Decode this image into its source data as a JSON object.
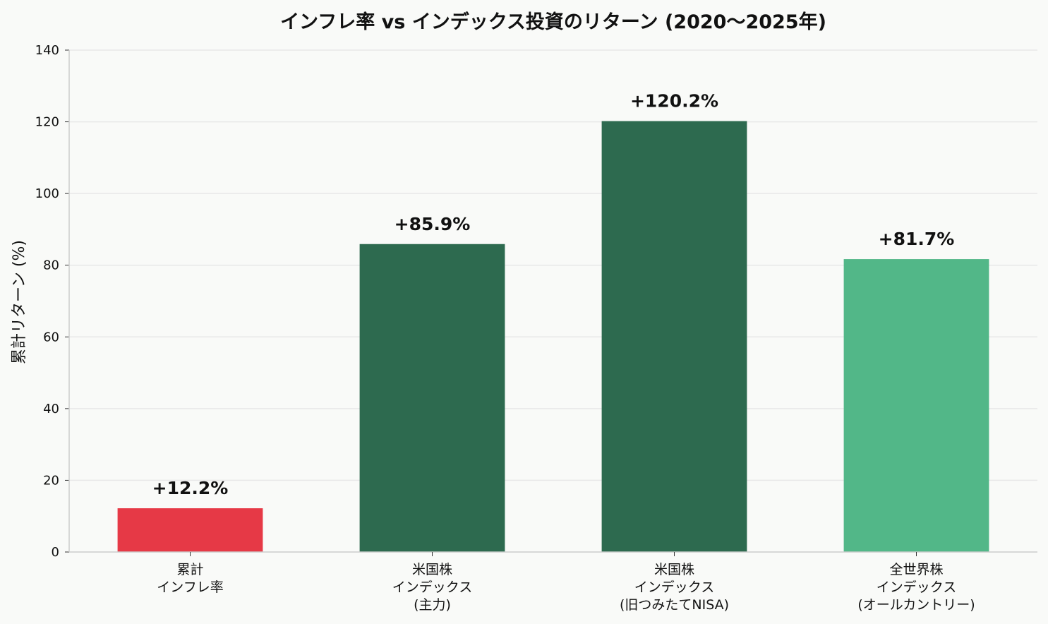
{
  "chart_data": {
    "type": "bar",
    "title": "インフレ率 vs インデックス投資のリターン (2020～2025年)",
    "xlabel": "",
    "ylabel": "累計リターン (%)",
    "ylim": [
      0,
      140
    ],
    "yticks": [
      0,
      20,
      40,
      60,
      80,
      100,
      120,
      140
    ],
    "grid": true,
    "categories": [
      [
        "累計",
        "インフレ率"
      ],
      [
        "米国株",
        "インデックス",
        "(主力)"
      ],
      [
        "米国株",
        "インデックス",
        "(旧つみたてNISA)"
      ],
      [
        "全世界株",
        "インデックス",
        "(オールカントリー)"
      ]
    ],
    "values": [
      12.2,
      85.9,
      120.2,
      81.7
    ],
    "data_labels": [
      "+12.2%",
      "+85.9%",
      "+120.2%",
      "+81.7%"
    ],
    "colors": [
      "#e63946",
      "#2d6a4f",
      "#2d6a4f",
      "#52b788"
    ],
    "grid_color": "#e8e8e8",
    "axis_color": "#cccccc"
  }
}
